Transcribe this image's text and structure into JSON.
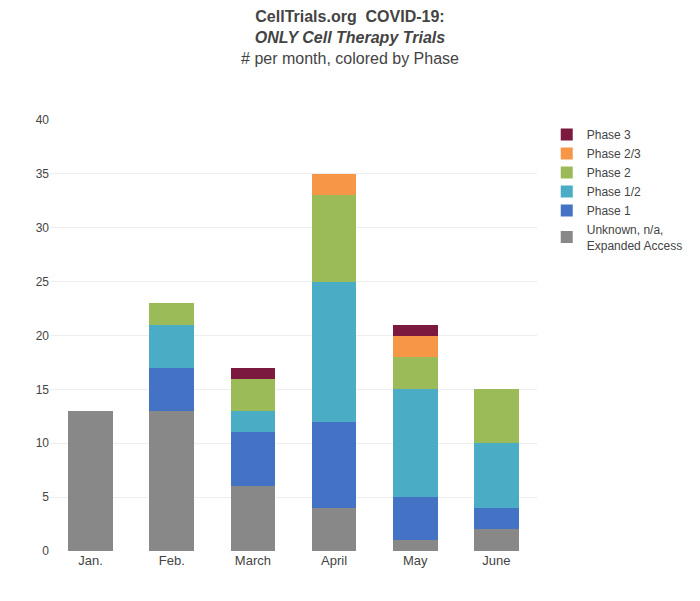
{
  "chart_data": {
    "type": "bar",
    "stacked": true,
    "title": "CellTrials.org  COVID-19:",
    "subtitle": [
      "ONLY Cell Therapy Trials",
      "# per month, colored by Phase"
    ],
    "categories": [
      "Jan.",
      "Feb.",
      "March",
      "April",
      "May",
      "June"
    ],
    "series": [
      {
        "name": "Unknown, n/a,\nExpanded Access",
        "color": "#888888",
        "values": [
          13,
          13,
          6,
          4,
          1,
          2
        ]
      },
      {
        "name": "Phase 1",
        "color": "#4472C4",
        "values": [
          0,
          4,
          5,
          8,
          4,
          2
        ]
      },
      {
        "name": "Phase 1/2",
        "color": "#4BACC6",
        "values": [
          0,
          4,
          2,
          13,
          10,
          6
        ]
      },
      {
        "name": "Phase 2",
        "color": "#9BBB59",
        "values": [
          0,
          2,
          3,
          8,
          3,
          5
        ]
      },
      {
        "name": "Phase 2/3",
        "color": "#F79646",
        "values": [
          0,
          0,
          0,
          2,
          2,
          0
        ]
      },
      {
        "name": "Phase 3",
        "color": "#7B1A3E",
        "values": [
          0,
          0,
          1,
          0,
          1,
          0
        ]
      }
    ],
    "ylim": [
      0,
      40
    ],
    "yticks": [
      0,
      5,
      10,
      15,
      20,
      25,
      30,
      35,
      40
    ],
    "grid": true,
    "legend": "upper right"
  }
}
